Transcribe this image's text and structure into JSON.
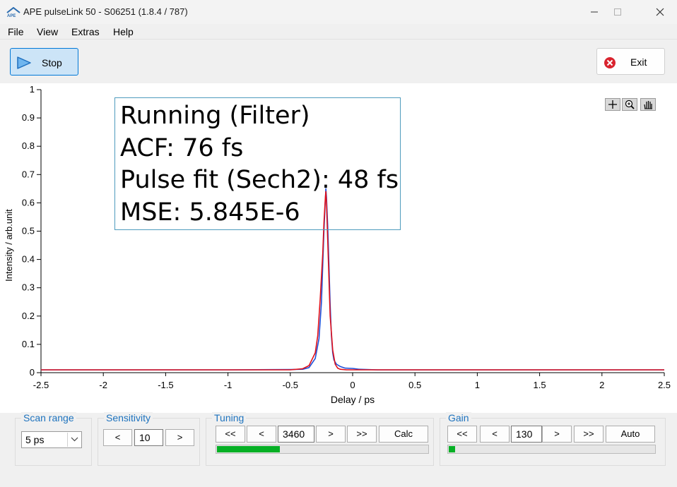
{
  "window": {
    "title": "APE pulseLink 50 - S06251 (1.8.4 / 787)",
    "logo_text": "APE"
  },
  "menu": [
    "File",
    "View",
    "Extras",
    "Help"
  ],
  "toolbar": {
    "stop_label": "Stop",
    "exit_label": "Exit"
  },
  "status": {
    "state": "Running (Filter)",
    "acf": "ACF: 76 fs",
    "pulse_fit": "Pulse fit (Sech2): 48 fs",
    "mse": "MSE: 5.845E-6"
  },
  "chart_data": {
    "type": "line",
    "xlabel": "Delay / ps",
    "ylabel": "Intensity / arb.unit",
    "xlim": [
      -2.5,
      2.5
    ],
    "ylim": [
      0,
      1
    ],
    "x_ticks": [
      "-2.5",
      "-2",
      "-1.5",
      "-1",
      "-0.5",
      "0",
      "0.5",
      "1",
      "1.5",
      "2",
      "2.5"
    ],
    "y_ticks": [
      "0",
      "0.1",
      "0.2",
      "0.3",
      "0.4",
      "0.5",
      "0.6",
      "0.7",
      "0.8",
      "0.9",
      "1"
    ],
    "grid": false,
    "series": [
      {
        "color": "#1f4fd8",
        "x": [
          -2.5,
          -1.0,
          -0.5,
          -0.4,
          -0.35,
          -0.3,
          -0.27,
          -0.25,
          -0.24,
          -0.23,
          -0.22,
          -0.215,
          -0.21,
          -0.2,
          -0.19,
          -0.18,
          -0.17,
          -0.16,
          -0.15,
          -0.13,
          -0.1,
          -0.06,
          0.0,
          0.05,
          0.2,
          1.0,
          2.5
        ],
        "y": [
          0.01,
          0.01,
          0.011,
          0.012,
          0.018,
          0.05,
          0.12,
          0.25,
          0.38,
          0.5,
          0.6,
          0.65,
          0.62,
          0.52,
          0.38,
          0.24,
          0.13,
          0.07,
          0.045,
          0.03,
          0.022,
          0.016,
          0.015,
          0.012,
          0.01,
          0.01,
          0.01
        ]
      },
      {
        "color": "#e0101a",
        "x": [
          -2.5,
          -1.0,
          -0.5,
          -0.4,
          -0.35,
          -0.3,
          -0.28,
          -0.26,
          -0.24,
          -0.23,
          -0.22,
          -0.215,
          -0.21,
          -0.2,
          -0.19,
          -0.18,
          -0.16,
          -0.14,
          -0.12,
          -0.1,
          -0.05,
          0.0,
          0.5,
          1.0,
          2.5
        ],
        "y": [
          0.01,
          0.01,
          0.01,
          0.014,
          0.025,
          0.07,
          0.13,
          0.26,
          0.42,
          0.53,
          0.61,
          0.64,
          0.6,
          0.47,
          0.33,
          0.2,
          0.08,
          0.03,
          0.016,
          0.012,
          0.01,
          0.01,
          0.01,
          0.01,
          0.01
        ]
      }
    ]
  },
  "controls": {
    "scan_range": {
      "label": "Scan range",
      "value": "5 ps"
    },
    "sensitivity": {
      "label": "Sensitivity",
      "dec": "<",
      "value": "10",
      "inc": ">"
    },
    "tuning": {
      "label": "Tuning",
      "fast_dec": "<<",
      "dec": "<",
      "value": "3460",
      "inc": ">",
      "fast_inc": ">>",
      "calc": "Calc",
      "progress": 0.3
    },
    "gain": {
      "label": "Gain",
      "fast_dec": "<<",
      "dec": "<",
      "value": "130",
      "inc": ">",
      "fast_inc": ">>",
      "auto": "Auto",
      "progress": 0.03
    }
  },
  "colors": {
    "accent": "#1e73be",
    "progress": "#06b025",
    "stop_bg": "#cce4f7",
    "exit_icon": "#d9232e"
  },
  "icons": [
    "ape-logo-icon",
    "minimize-icon",
    "maximize-icon",
    "close-icon",
    "play-icon",
    "exit-icon",
    "crosshair-icon",
    "zoom-icon",
    "pan-hand-icon",
    "chevron-down-icon"
  ]
}
